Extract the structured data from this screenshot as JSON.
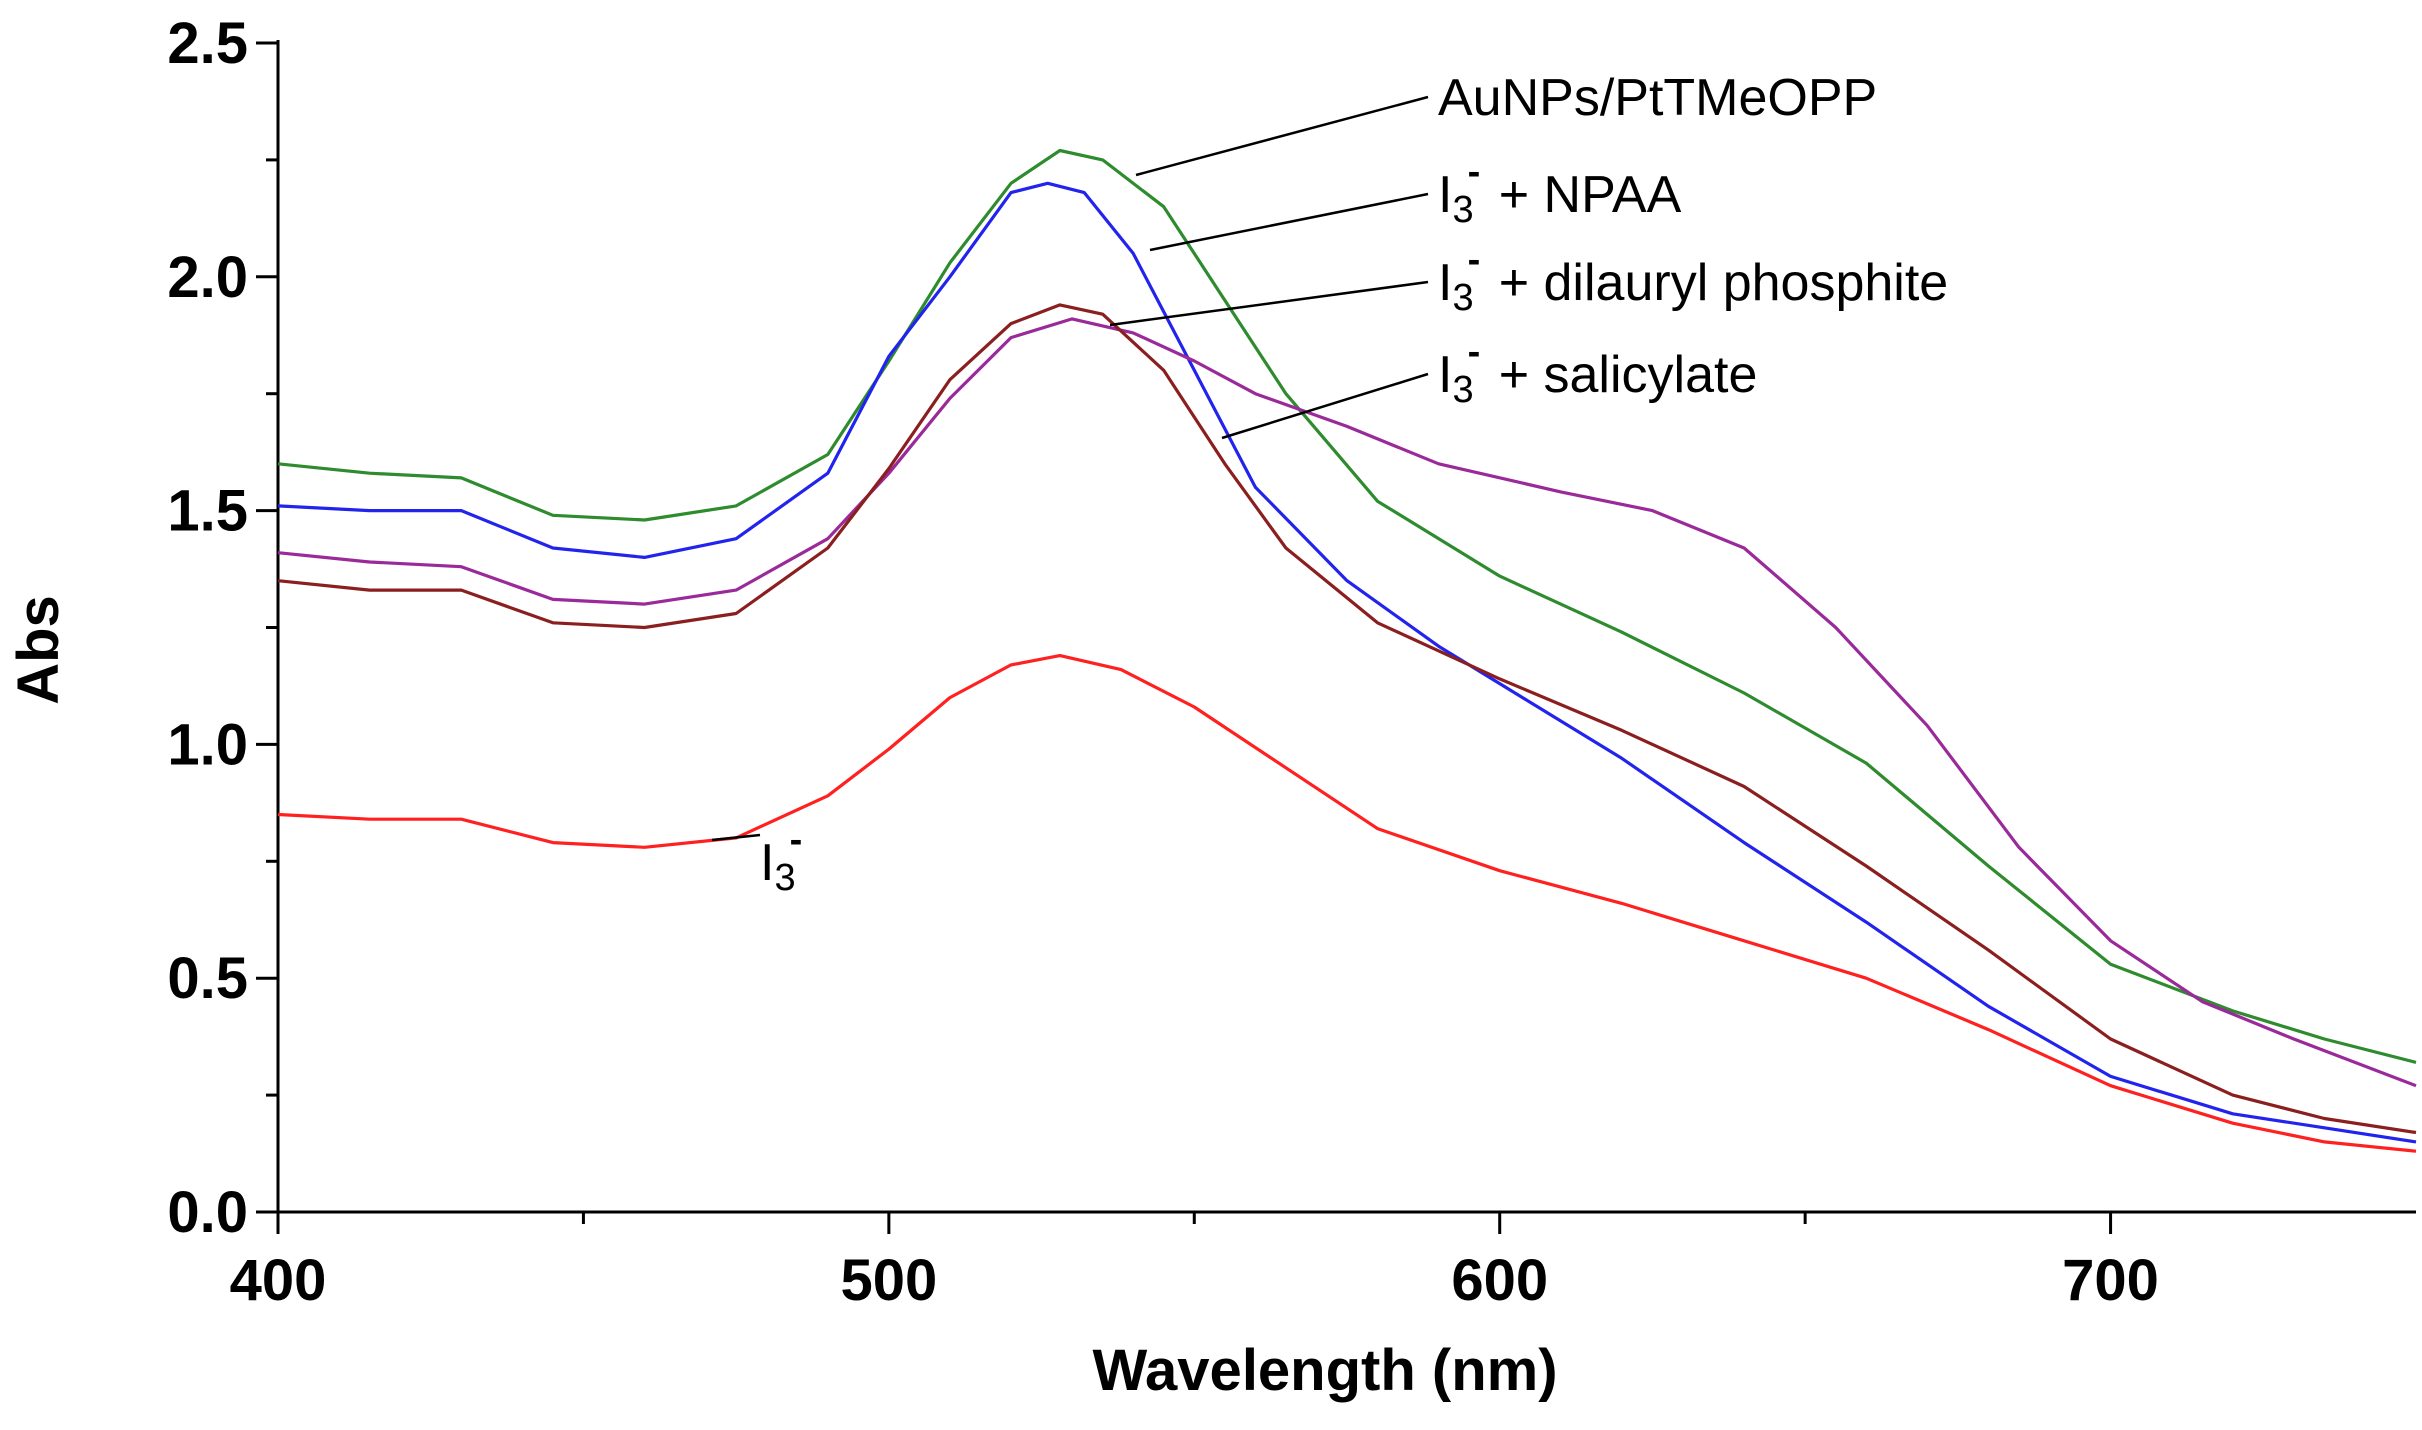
{
  "chart_data": {
    "type": "line",
    "title": "",
    "xlabel": "Wavelength (nm)",
    "ylabel": "Abs",
    "xlim": [
      400,
      750
    ],
    "ylim": [
      0.0,
      2.5
    ],
    "x_ticks": [
      400,
      500,
      600,
      700
    ],
    "x_tick_labels": [
      "400",
      "500",
      "600",
      "700"
    ],
    "y_ticks": [
      0.0,
      0.5,
      1.0,
      1.5,
      2.0,
      2.5
    ],
    "y_tick_labels": [
      "0.0",
      "0.5",
      "1.0",
      "1.5",
      "2.0",
      "2.5"
    ],
    "grid": false,
    "legend": "annotations",
    "series": [
      {
        "name": "AuNPs/PtTMeOPP",
        "label_main": "AuNPs/PtTMeOPP",
        "label_sup": "",
        "label_sub": "",
        "label_rest": "",
        "color": "#2e8b2e",
        "points": [
          [
            400,
            1.6
          ],
          [
            415,
            1.58
          ],
          [
            430,
            1.57
          ],
          [
            445,
            1.49
          ],
          [
            460,
            1.48
          ],
          [
            475,
            1.51
          ],
          [
            490,
            1.62
          ],
          [
            500,
            1.82
          ],
          [
            510,
            2.03
          ],
          [
            520,
            2.2
          ],
          [
            528,
            2.27
          ],
          [
            535,
            2.25
          ],
          [
            545,
            2.15
          ],
          [
            555,
            1.95
          ],
          [
            565,
            1.75
          ],
          [
            580,
            1.52
          ],
          [
            600,
            1.36
          ],
          [
            620,
            1.24
          ],
          [
            640,
            1.11
          ],
          [
            660,
            0.96
          ],
          [
            680,
            0.74
          ],
          [
            700,
            0.53
          ],
          [
            720,
            0.43
          ],
          [
            735,
            0.37
          ],
          [
            750,
            0.32
          ]
        ]
      },
      {
        "name": "I3- + NPAA",
        "label_main": "I",
        "label_sub": "3",
        "label_sup": "-",
        "label_rest": "+ NPAA",
        "color": "#2323ee",
        "points": [
          [
            400,
            1.51
          ],
          [
            415,
            1.5
          ],
          [
            430,
            1.5
          ],
          [
            445,
            1.42
          ],
          [
            460,
            1.4
          ],
          [
            475,
            1.44
          ],
          [
            490,
            1.58
          ],
          [
            500,
            1.83
          ],
          [
            510,
            2.0
          ],
          [
            520,
            2.18
          ],
          [
            526,
            2.2
          ],
          [
            532,
            2.18
          ],
          [
            540,
            2.05
          ],
          [
            550,
            1.8
          ],
          [
            560,
            1.55
          ],
          [
            575,
            1.35
          ],
          [
            590,
            1.21
          ],
          [
            600,
            1.13
          ],
          [
            620,
            0.97
          ],
          [
            640,
            0.79
          ],
          [
            660,
            0.62
          ],
          [
            680,
            0.44
          ],
          [
            700,
            0.29
          ],
          [
            720,
            0.21
          ],
          [
            735,
            0.18
          ],
          [
            750,
            0.15
          ]
        ]
      },
      {
        "name": "I3- + dilauryl phosphite",
        "label_main": "I",
        "label_sub": "3",
        "label_sup": "-",
        "label_rest": "+ dilauryl phosphite",
        "color": "#9a2a9a",
        "points": [
          [
            400,
            1.41
          ],
          [
            415,
            1.39
          ],
          [
            430,
            1.38
          ],
          [
            445,
            1.31
          ],
          [
            460,
            1.3
          ],
          [
            475,
            1.33
          ],
          [
            490,
            1.44
          ],
          [
            500,
            1.58
          ],
          [
            510,
            1.74
          ],
          [
            520,
            1.87
          ],
          [
            530,
            1.91
          ],
          [
            540,
            1.88
          ],
          [
            550,
            1.82
          ],
          [
            560,
            1.75
          ],
          [
            575,
            1.68
          ],
          [
            590,
            1.6
          ],
          [
            610,
            1.54
          ],
          [
            625,
            1.5
          ],
          [
            640,
            1.42
          ],
          [
            655,
            1.25
          ],
          [
            670,
            1.04
          ],
          [
            685,
            0.78
          ],
          [
            700,
            0.58
          ],
          [
            715,
            0.45
          ],
          [
            730,
            0.37
          ],
          [
            750,
            0.27
          ]
        ]
      },
      {
        "name": "I3- + salicylate",
        "label_main": "I",
        "label_sub": "3",
        "label_sup": "-",
        "label_rest": "+ salicylate",
        "color": "#8b1f1f",
        "points": [
          [
            400,
            1.35
          ],
          [
            415,
            1.33
          ],
          [
            430,
            1.33
          ],
          [
            445,
            1.26
          ],
          [
            460,
            1.25
          ],
          [
            475,
            1.28
          ],
          [
            490,
            1.42
          ],
          [
            500,
            1.59
          ],
          [
            510,
            1.78
          ],
          [
            520,
            1.9
          ],
          [
            528,
            1.94
          ],
          [
            535,
            1.92
          ],
          [
            545,
            1.8
          ],
          [
            555,
            1.6
          ],
          [
            565,
            1.42
          ],
          [
            580,
            1.26
          ],
          [
            600,
            1.14
          ],
          [
            620,
            1.03
          ],
          [
            640,
            0.91
          ],
          [
            660,
            0.74
          ],
          [
            680,
            0.56
          ],
          [
            700,
            0.37
          ],
          [
            720,
            0.25
          ],
          [
            735,
            0.2
          ],
          [
            750,
            0.17
          ]
        ]
      },
      {
        "name": "I3-",
        "label_main": "I",
        "label_sub": "3",
        "label_sup": "-",
        "label_rest": "",
        "color": "#ff2020",
        "points": [
          [
            400,
            0.85
          ],
          [
            415,
            0.84
          ],
          [
            430,
            0.84
          ],
          [
            445,
            0.79
          ],
          [
            460,
            0.78
          ],
          [
            475,
            0.8
          ],
          [
            490,
            0.89
          ],
          [
            500,
            0.99
          ],
          [
            510,
            1.1
          ],
          [
            520,
            1.17
          ],
          [
            528,
            1.19
          ],
          [
            538,
            1.16
          ],
          [
            550,
            1.08
          ],
          [
            565,
            0.95
          ],
          [
            580,
            0.82
          ],
          [
            600,
            0.73
          ],
          [
            620,
            0.66
          ],
          [
            640,
            0.58
          ],
          [
            660,
            0.5
          ],
          [
            680,
            0.39
          ],
          [
            700,
            0.27
          ],
          [
            720,
            0.19
          ],
          [
            735,
            0.15
          ],
          [
            750,
            0.13
          ]
        ]
      }
    ]
  }
}
